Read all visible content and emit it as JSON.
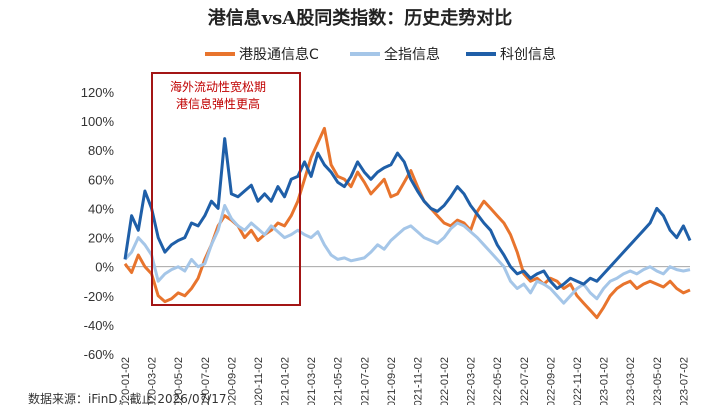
{
  "chart_data": {
    "type": "line",
    "title": "港信息vsA股同类指数：历史走势对比",
    "ylim": [
      -60,
      120
    ],
    "yticks": [
      "120%",
      "100%",
      "80%",
      "60%",
      "40%",
      "20%",
      "0%",
      "-20%",
      "-40%",
      "-60%"
    ],
    "xticks": [
      "2020-01-02",
      "2020-03-02",
      "2020-05-02",
      "2020-07-02",
      "2020-09-02",
      "2020-11-02",
      "2021-01-02",
      "2021-03-02",
      "2021-05-02",
      "2021-07-02",
      "2021-09-02",
      "2021-11-02",
      "2022-01-02",
      "2022-03-02",
      "2022-05-02",
      "2022-07-02",
      "2022-09-02",
      "2022-11-02",
      "2023-01-02",
      "2023-03-02",
      "2023-05-02",
      "2023-07-02"
    ],
    "x_months": [
      0,
      0.5,
      1,
      1.5,
      2,
      2.5,
      3,
      3.5,
      4,
      4.5,
      5,
      5.5,
      6,
      6.5,
      7,
      7.5,
      8,
      8.5,
      9,
      9.5,
      10,
      10.5,
      11,
      11.5,
      12,
      12.5,
      13,
      13.5,
      14,
      14.5,
      15,
      15.5,
      16,
      16.5,
      17,
      17.5,
      18,
      18.5,
      19,
      19.5,
      20,
      20.5,
      21,
      21.5,
      22,
      22.5,
      23,
      23.5,
      24,
      24.5,
      25,
      25.5,
      26,
      26.5,
      27,
      27.5,
      28,
      28.5,
      29,
      29.5,
      30,
      30.5,
      31,
      31.5,
      32,
      32.5,
      33,
      33.5,
      34,
      34.5,
      35,
      35.5,
      36,
      36.5,
      37,
      37.5,
      38,
      38.5,
      39,
      39.5,
      40,
      40.5,
      41,
      41.5,
      42,
      42.5
    ],
    "series": [
      {
        "name": "港股通信息C",
        "color": "#E8742D",
        "values": [
          2,
          -4,
          8,
          0,
          -5,
          -20,
          -24,
          -22,
          -18,
          -20,
          -15,
          -8,
          5,
          15,
          28,
          35,
          32,
          28,
          20,
          25,
          18,
          22,
          25,
          30,
          28,
          35,
          45,
          60,
          75,
          85,
          95,
          70,
          62,
          60,
          55,
          65,
          58,
          50,
          55,
          60,
          48,
          50,
          58,
          66,
          55,
          45,
          40,
          35,
          30,
          28,
          32,
          30,
          25,
          38,
          45,
          40,
          35,
          30,
          22,
          10,
          -5,
          -10,
          -8,
          -12,
          -8,
          -10,
          -15,
          -12,
          -20,
          -25,
          -30,
          -35,
          -28,
          -20,
          -15,
          -12,
          -10,
          -15,
          -12,
          -10,
          -12,
          -14,
          -10,
          -15,
          -18,
          -16
        ]
      },
      {
        "name": "全指信息",
        "color": "#A5C6E8",
        "values": [
          5,
          10,
          20,
          15,
          8,
          -10,
          -5,
          -2,
          0,
          -3,
          5,
          0,
          2,
          15,
          25,
          42,
          33,
          28,
          25,
          30,
          26,
          22,
          28,
          24,
          20,
          22,
          25,
          22,
          20,
          24,
          15,
          8,
          5,
          6,
          4,
          5,
          6,
          10,
          15,
          12,
          18,
          22,
          26,
          28,
          24,
          20,
          18,
          16,
          20,
          26,
          30,
          28,
          24,
          20,
          15,
          10,
          5,
          0,
          -10,
          -15,
          -12,
          -18,
          -10,
          -12,
          -15,
          -20,
          -25,
          -20,
          -15,
          -12,
          -18,
          -22,
          -15,
          -10,
          -8,
          -5,
          -3,
          -5,
          -2,
          0,
          -3,
          -5,
          0,
          -2,
          -3,
          -2
        ]
      },
      {
        "name": "科创信息",
        "color": "#1F5FA8",
        "values": [
          5,
          35,
          25,
          52,
          40,
          20,
          10,
          15,
          18,
          20,
          30,
          28,
          35,
          45,
          40,
          88,
          50,
          48,
          52,
          56,
          45,
          50,
          45,
          55,
          48,
          60,
          62,
          72,
          62,
          78,
          70,
          65,
          58,
          55,
          62,
          72,
          65,
          60,
          65,
          68,
          70,
          78,
          72,
          60,
          52,
          45,
          40,
          38,
          42,
          48,
          55,
          50,
          42,
          36,
          30,
          25,
          15,
          8,
          0,
          -5,
          -3,
          -8,
          -5,
          -3,
          -10,
          -15,
          -12,
          -8,
          -10,
          -12,
          -8,
          -10,
          -5,
          0,
          5,
          10,
          15,
          20,
          25,
          30,
          40,
          35,
          25,
          20,
          28,
          18
        ]
      }
    ],
    "annotation": {
      "line1": "海外流动性宽松期",
      "line2": "港信息弹性更高"
    }
  },
  "source": "数据来源：iFinD，截止 2026/07/17"
}
